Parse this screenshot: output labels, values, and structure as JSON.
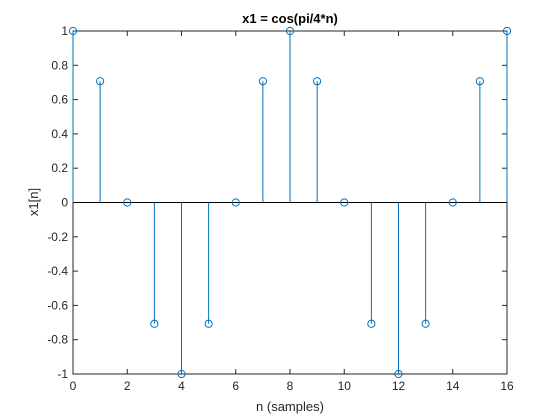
{
  "chart_data": {
    "type": "stem",
    "title": "x1 = cos(pi/4*n)",
    "xlabel": "n (samples)",
    "ylabel": "x1[n]",
    "xlim": [
      0,
      16
    ],
    "ylim": [
      -1,
      1
    ],
    "xticks": [
      0,
      2,
      4,
      6,
      8,
      10,
      12,
      14,
      16
    ],
    "yticks": [
      -1,
      -0.8,
      -0.6,
      -0.4,
      -0.2,
      0,
      0.2,
      0.4,
      0.6,
      0.8,
      1
    ],
    "xtick_labels": [
      "0",
      "2",
      "4",
      "6",
      "8",
      "10",
      "12",
      "14",
      "16"
    ],
    "ytick_labels": [
      "-1",
      "-0.8",
      "-0.6",
      "-0.4",
      "-0.2",
      "0",
      "0.2",
      "0.4",
      "0.6",
      "0.8",
      "1"
    ],
    "grid": false,
    "color": "#0072BD",
    "series": [
      {
        "x": [
          0,
          1,
          2,
          3,
          4,
          5,
          6,
          7,
          8,
          9,
          10,
          11,
          12,
          13,
          14,
          15,
          16
        ],
        "values": [
          1,
          0.7071,
          0,
          -0.7071,
          -1,
          -0.7071,
          0,
          0.7071,
          1,
          0.7071,
          0,
          -0.7071,
          -1,
          -0.7071,
          0,
          0.7071,
          1
        ]
      }
    ]
  }
}
